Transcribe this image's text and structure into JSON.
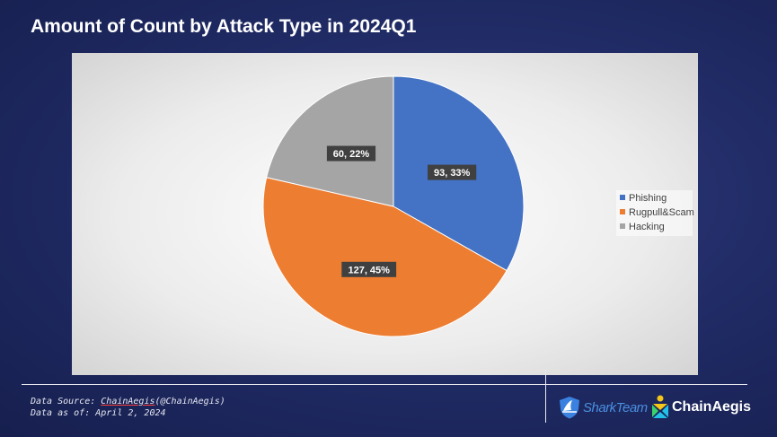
{
  "header": {
    "title": "Amount of Count by Attack Type in 2024Q1"
  },
  "chart_data": {
    "type": "pie",
    "title": "Amount of Count by Attack Type in 2024Q1",
    "categories": [
      "Phishing",
      "Rugpull&Scam",
      "Hacking"
    ],
    "values": [
      93,
      127,
      60
    ],
    "percent_labels": [
      "93, 33%",
      "127, 45%",
      "60, 22%"
    ],
    "colors": [
      "#4472c4",
      "#ed7d31",
      "#a5a5a5"
    ],
    "legend_position": "right"
  },
  "footer": {
    "source_prefix": "Data Source: ",
    "source_link": "ChainAegis",
    "source_handle": "(@ChainAegis)",
    "asof": "Data as of: April 2, 2024",
    "logo_shark": "SharkTeam",
    "logo_aegis": "ChainAegis"
  }
}
